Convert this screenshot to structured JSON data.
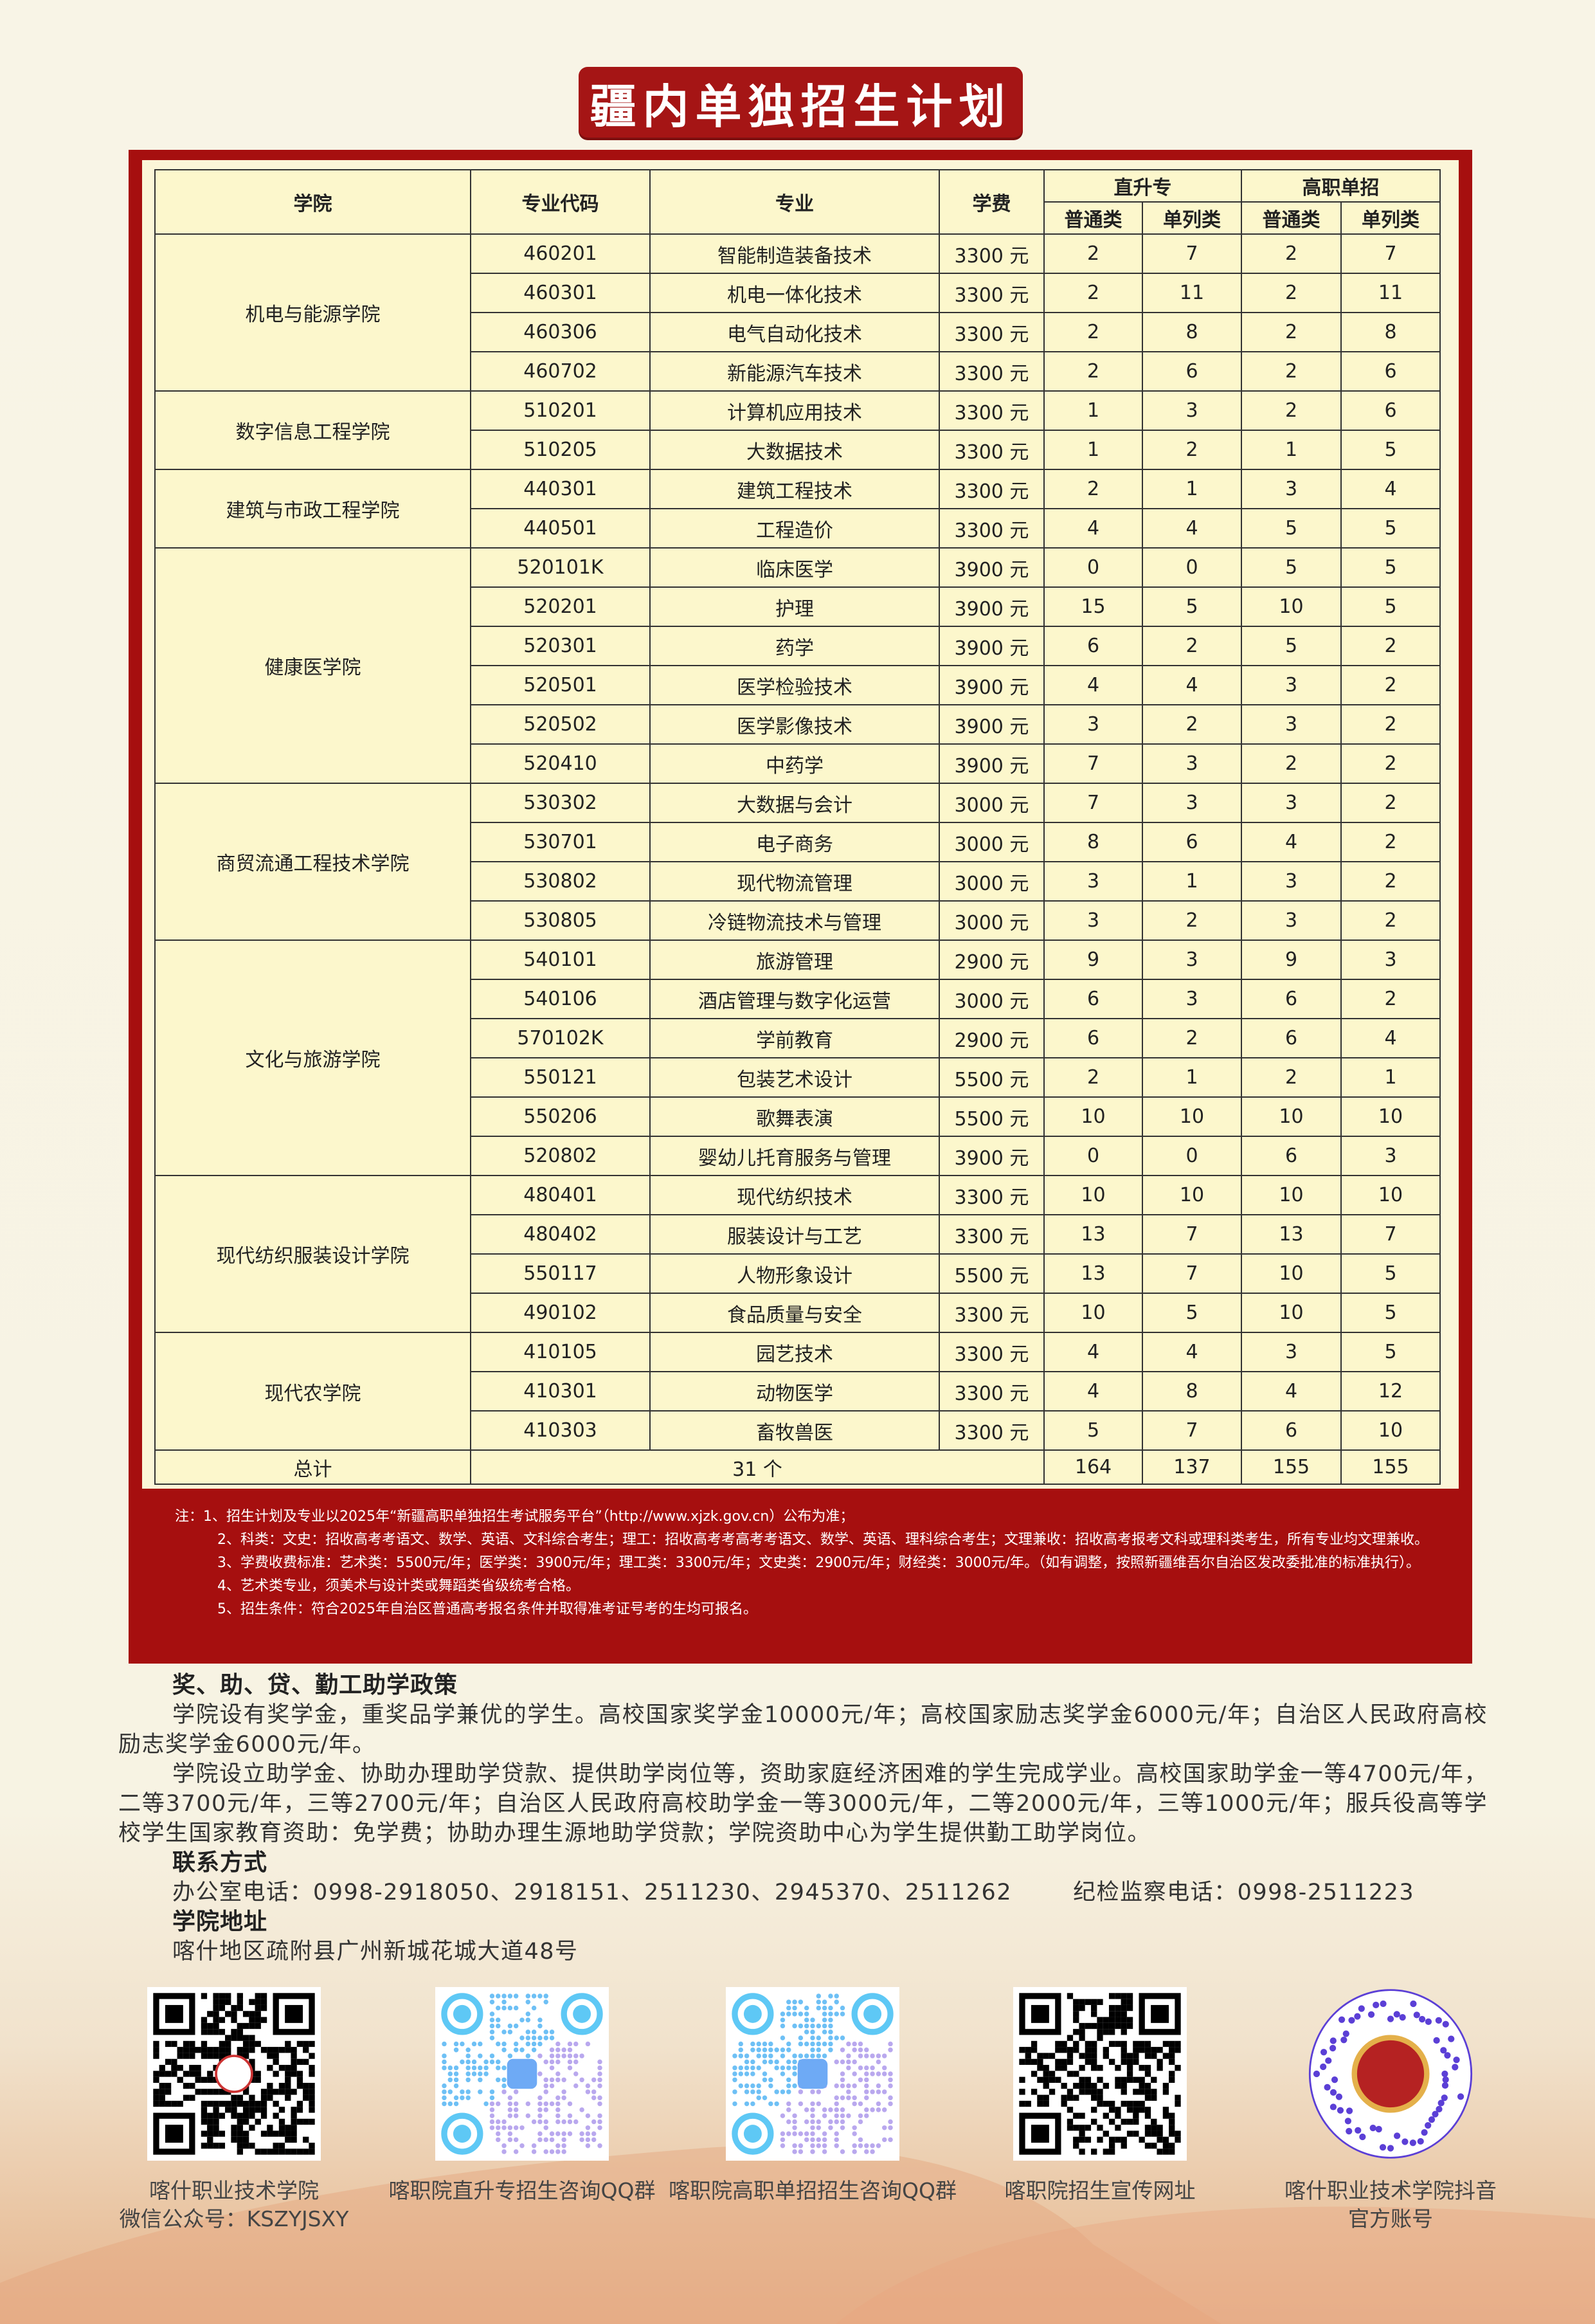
{
  "title": "疆内单独招生计划",
  "table": {
    "headers": {
      "college": "学院",
      "code": "专业代码",
      "major": "专业",
      "fee": "学费",
      "zsz": "直升专",
      "gzdz": "高职单招",
      "pt": "普通类",
      "dl": "单列类"
    },
    "colleges": [
      {
        "name": "机电与能源学院",
        "majors": [
          [
            "460201",
            "智能制造装备技术",
            "3300 元",
            "2",
            "7",
            "2",
            "7"
          ],
          [
            "460301",
            "机电一体化技术",
            "3300 元",
            "2",
            "11",
            "2",
            "11"
          ],
          [
            "460306",
            "电气自动化技术",
            "3300 元",
            "2",
            "8",
            "2",
            "8"
          ],
          [
            "460702",
            "新能源汽车技术",
            "3300 元",
            "2",
            "6",
            "2",
            "6"
          ]
        ]
      },
      {
        "name": "数字信息工程学院",
        "majors": [
          [
            "510201",
            "计算机应用技术",
            "3300 元",
            "1",
            "3",
            "2",
            "6"
          ],
          [
            "510205",
            "大数据技术",
            "3300 元",
            "1",
            "2",
            "1",
            "5"
          ]
        ]
      },
      {
        "name": "建筑与市政工程学院",
        "majors": [
          [
            "440301",
            "建筑工程技术",
            "3300 元",
            "2",
            "1",
            "3",
            "4"
          ],
          [
            "440501",
            "工程造价",
            "3300 元",
            "4",
            "4",
            "5",
            "5"
          ]
        ]
      },
      {
        "name": "健康医学院",
        "majors": [
          [
            "520101K",
            "临床医学",
            "3900 元",
            "0",
            "0",
            "5",
            "5"
          ],
          [
            "520201",
            "护理",
            "3900 元",
            "15",
            "5",
            "10",
            "5"
          ],
          [
            "520301",
            "药学",
            "3900 元",
            "6",
            "2",
            "5",
            "2"
          ],
          [
            "520501",
            "医学检验技术",
            "3900 元",
            "4",
            "4",
            "3",
            "2"
          ],
          [
            "520502",
            "医学影像技术",
            "3900 元",
            "3",
            "2",
            "3",
            "2"
          ],
          [
            "520410",
            "中药学",
            "3900 元",
            "7",
            "3",
            "2",
            "2"
          ]
        ]
      },
      {
        "name": "商贸流通工程技术学院",
        "majors": [
          [
            "530302",
            "大数据与会计",
            "3000 元",
            "7",
            "3",
            "3",
            "2"
          ],
          [
            "530701",
            "电子商务",
            "3000 元",
            "8",
            "6",
            "4",
            "2"
          ],
          [
            "530802",
            "现代物流管理",
            "3000 元",
            "3",
            "1",
            "3",
            "2"
          ],
          [
            "530805",
            "冷链物流技术与管理",
            "3000 元",
            "3",
            "2",
            "3",
            "2"
          ]
        ]
      },
      {
        "name": "文化与旅游学院",
        "majors": [
          [
            "540101",
            "旅游管理",
            "2900 元",
            "9",
            "3",
            "9",
            "3"
          ],
          [
            "540106",
            "酒店管理与数字化运营",
            "3000 元",
            "6",
            "3",
            "6",
            "2"
          ],
          [
            "570102K",
            "学前教育",
            "2900 元",
            "6",
            "2",
            "6",
            "4"
          ],
          [
            "550121",
            "包装艺术设计",
            "5500 元",
            "2",
            "1",
            "2",
            "1"
          ],
          [
            "550206",
            "歌舞表演",
            "5500 元",
            "10",
            "10",
            "10",
            "10"
          ],
          [
            "520802",
            "婴幼儿托育服务与管理",
            "3900 元",
            "0",
            "0",
            "6",
            "3"
          ]
        ]
      },
      {
        "name": "现代纺织服装设计学院",
        "majors": [
          [
            "480401",
            "现代纺织技术",
            "3300 元",
            "10",
            "10",
            "10",
            "10"
          ],
          [
            "480402",
            "服装设计与工艺",
            "3300 元",
            "13",
            "7",
            "13",
            "7"
          ],
          [
            "550117",
            "人物形象设计",
            "5500 元",
            "13",
            "7",
            "10",
            "5"
          ],
          [
            "490102",
            "食品质量与安全",
            "3300 元",
            "10",
            "5",
            "10",
            "5"
          ]
        ]
      },
      {
        "name": "现代农学院",
        "majors": [
          [
            "410105",
            "园艺技术",
            "3300 元",
            "4",
            "4",
            "3",
            "5"
          ],
          [
            "410301",
            "动物医学",
            "3300 元",
            "4",
            "8",
            "4",
            "12"
          ],
          [
            "410303",
            "畜牧兽医",
            "3300 元",
            "5",
            "7",
            "6",
            "10"
          ]
        ]
      }
    ],
    "total": {
      "label": "总计",
      "count": "31 个",
      "values": [
        "164",
        "137",
        "155",
        "155"
      ]
    }
  },
  "notes": [
    "注：1、招生计划及专业以2025年“新疆高职单独招生考试服务平台”（http://www.xjzk.gov.cn）公布为准；",
    "2、科类：文史：招收高考考语文、数学、英语、文科综合考生；理工：招收高考考高考考语文、数学、英语、理科综合考生；文理兼收：招收高考报考文科或理科类考生，所有专业均文理兼收。",
    "3、学费收费标准：艺术类：5500元/年；医学类：3900元/年；理工类：3300元/年；文史类：2900元/年；财经类：3000元/年。（如有调整，按照新疆维吾尔自治区发改委批准的标准执行）。",
    "4、艺术类专业，须美术与设计类或舞蹈类省级统考合格。",
    "5、招生条件：符合2025年自治区普通高考报名条件并取得准考证号考的生均可报名。"
  ],
  "aid": {
    "heading": "奖、助、贷、勤工助学政策",
    "p1": "学院设有奖学金，重奖品学兼优的学生。高校国家奖学金10000元/年；高校国家励志奖学金6000元/年；自治区人民政府高校励志奖学金6000元/年。",
    "p2": "学院设立助学金、协助办理助学贷款、提供助学岗位等，资助家庭经济困难的学生完成学业。高校国家助学金一等4700元/年，二等3700元/年，三等2700元/年；自治区人民政府高校助学金一等3000元/年，二等2000元/年，三等1000元/年；服兵役高等学校学生国家教育资助：免学费；协助办理生源地助学贷款；学院资助中心为学生提供勤工助学岗位。"
  },
  "contact": {
    "heading": "联系方式",
    "office": "办公室电话：0998-2918050、2918151、2511230、2945370、2511262",
    "discipline": "纪检监察电话：0998-2511223"
  },
  "address": {
    "heading": "学院地址",
    "value": "喀什地区疏附县广州新城花城大道48号"
  },
  "qrcodes": [
    {
      "line1": "喀什职业技术学院",
      "line2": "微信公众号：KSZYJSXY",
      "style": "wechat"
    },
    {
      "line1": "喀职院直升专招生咨询QQ群",
      "line2": "",
      "style": "qq"
    },
    {
      "line1": "喀职院高职单招招生咨询QQ群",
      "line2": "",
      "style": "qq"
    },
    {
      "line1": "喀职院招生宣传网址",
      "line2": "",
      "style": "web"
    },
    {
      "line1": "喀什职业技术学院抖音",
      "line2": "官方账号",
      "style": "douyin"
    }
  ],
  "colors": {
    "red": "#a60f0f",
    "cream": "#fcf7cc",
    "qq_blue": "#5aa8f5",
    "douyin_purple": "#5b3fd6"
  }
}
